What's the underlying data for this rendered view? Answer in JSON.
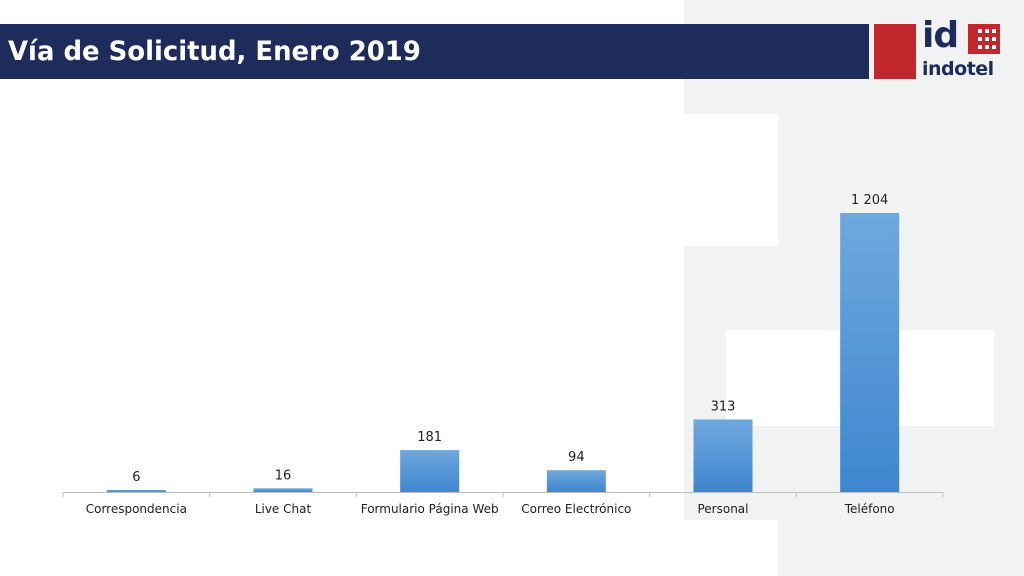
{
  "header": {
    "title": "Vía de Solicitud, Enero 2019"
  },
  "logo": {
    "mark": "id",
    "wordmark": "indotel"
  },
  "colors": {
    "header_bg": "#1d2c5a",
    "logo_red": "#c1272d",
    "bar_top": "#6fa8df",
    "bar_bottom": "#3e86cf",
    "panel_grey": "#f1f2f2"
  },
  "chart_data": {
    "type": "bar",
    "categories": [
      "Correspondencia",
      "Live Chat",
      "Formulario Página Web",
      "Correo Electrónico",
      "Personal",
      "Teléfono"
    ],
    "values": [
      6,
      16,
      181,
      94,
      313,
      1204
    ],
    "data_labels": [
      "6",
      "16",
      "181",
      "94",
      "313",
      "1 204"
    ],
    "ylim": [
      0,
      1204
    ],
    "grid": false,
    "legend": "none"
  }
}
